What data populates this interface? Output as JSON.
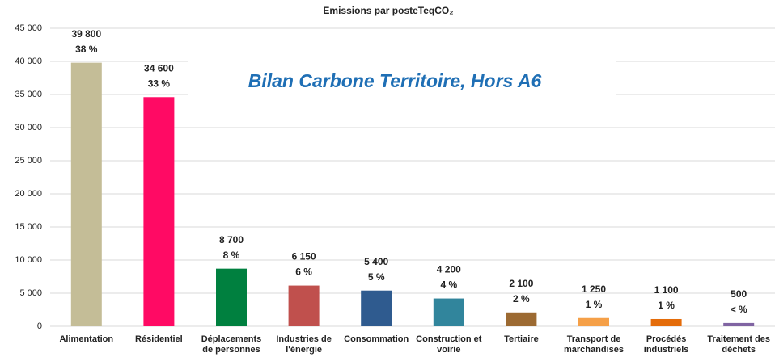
{
  "chart_data": {
    "type": "bar",
    "title": "Emissions par posteTeqCO₂",
    "annotation": "Bilan Carbone Territoire, Hors A6",
    "categories": [
      "Alimentation",
      "Résidentiel",
      "Déplacements de personnes",
      "Industries de l'énergie",
      "Consommation",
      "Construction et voirie",
      "Tertiaire",
      "Transport de marchandises",
      "Procédés industriels",
      "Traitement des déchets"
    ],
    "values": [
      39800,
      34600,
      8700,
      6150,
      5400,
      4200,
      2100,
      1250,
      1100,
      500
    ],
    "value_labels": [
      "39 800",
      "34 600",
      "8 700",
      "6 150",
      "5 400",
      "4 200",
      "2 100",
      "1 250",
      "1 100",
      "500"
    ],
    "share_labels": [
      "38 %",
      "33 %",
      "8 %",
      "6 %",
      "5 %",
      "4 %",
      "2 %",
      "1 %",
      "1 %",
      "< %"
    ],
    "colors": [
      "#c4bd97",
      "#ff0a64",
      "#00803f",
      "#c0504d",
      "#2f5b8f",
      "#31859c",
      "#9c6a32",
      "#f5a048",
      "#e46c0a",
      "#8064a2"
    ],
    "ylim": [
      0,
      45000
    ],
    "yticks": [
      0,
      {
        "value": 5000,
        "label": "5 000"
      },
      {
        "value": 10000,
        "label": "10 000"
      },
      {
        "value": 15000,
        "label": "15 000"
      },
      {
        "value": 20000,
        "label": "20 000"
      },
      {
        "value": 25000,
        "label": "25 000"
      },
      {
        "value": 30000,
        "label": "30 000"
      },
      {
        "value": 35000,
        "label": "35 000"
      },
      {
        "value": 40000,
        "label": "40 000"
      },
      {
        "value": 45000,
        "label": "45 000"
      }
    ],
    "grid": true
  }
}
